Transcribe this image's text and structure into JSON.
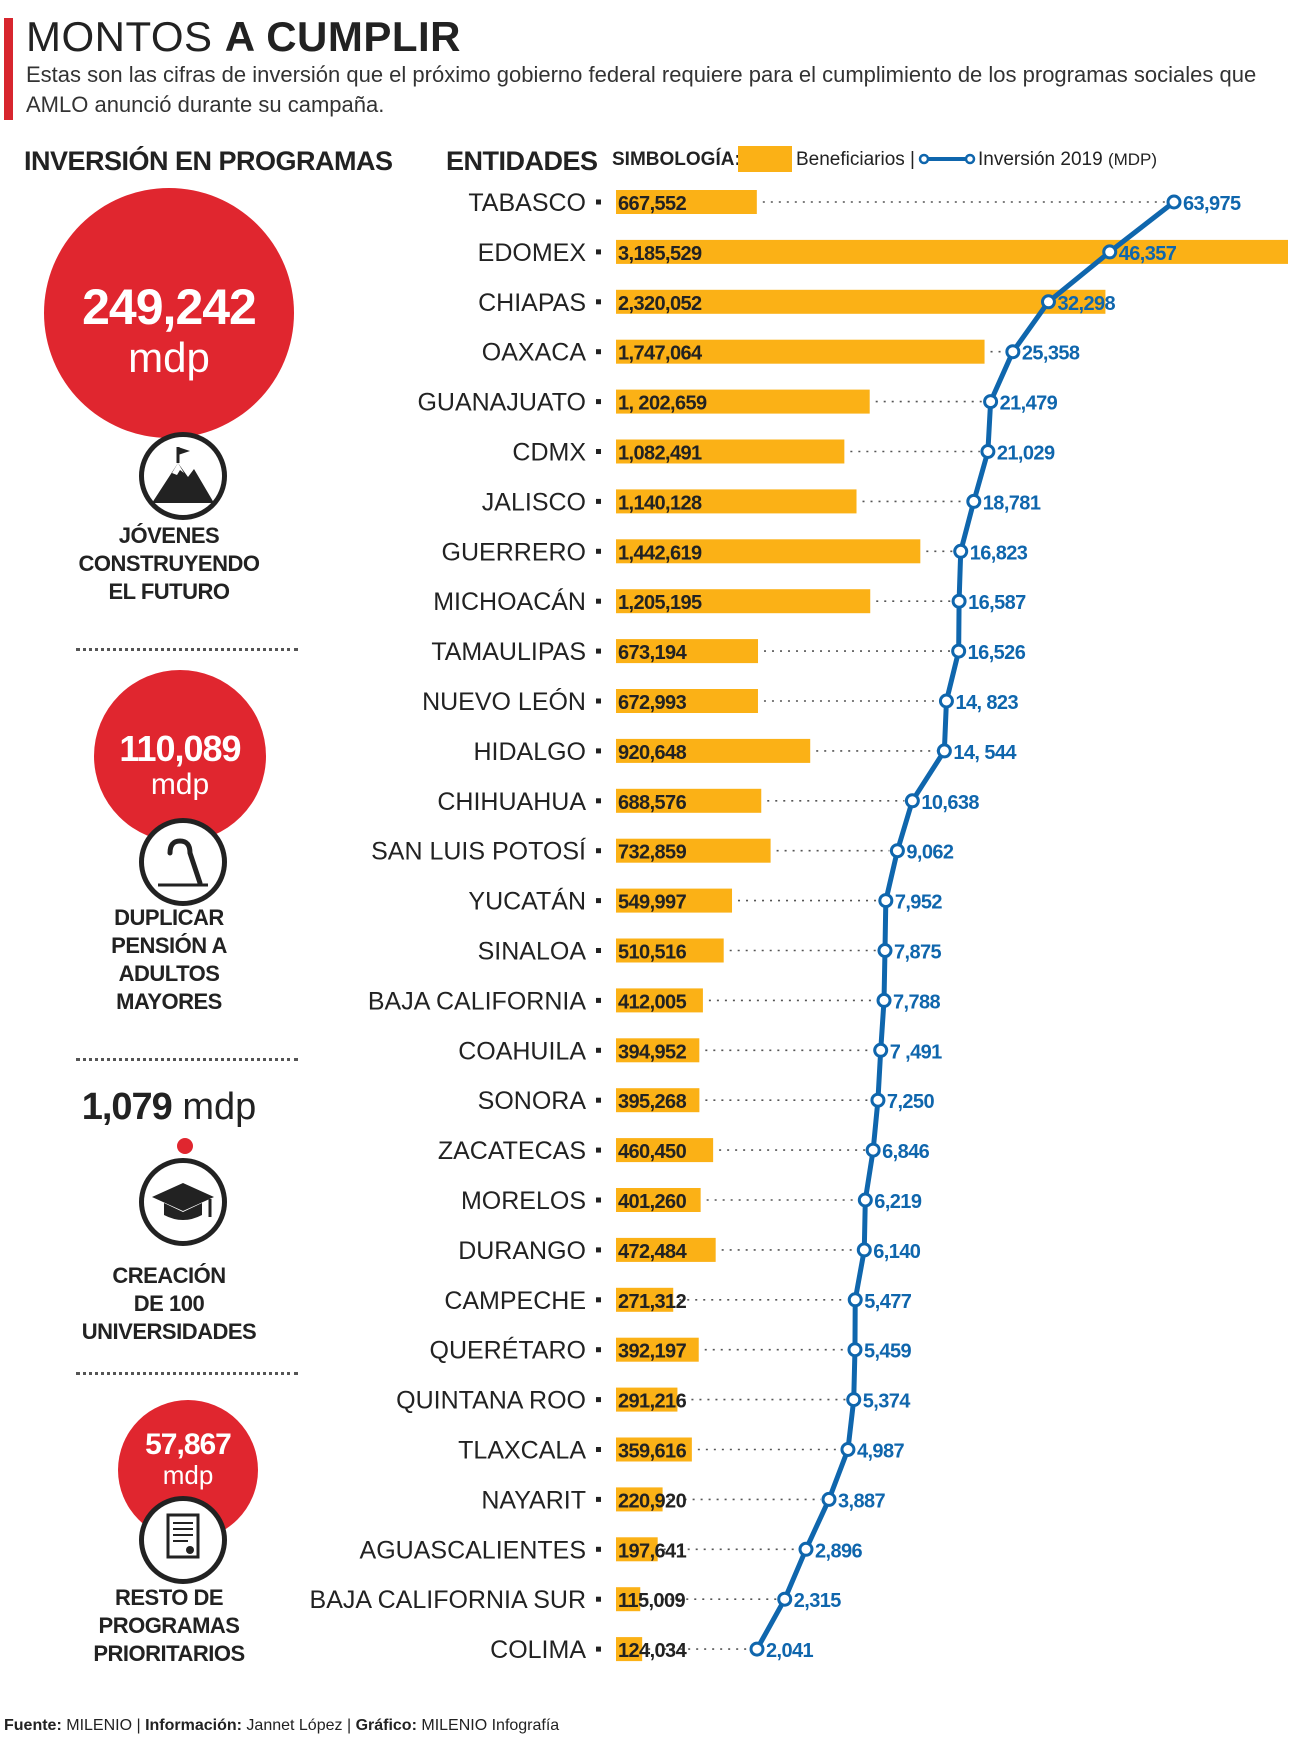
{
  "header": {
    "title_light": "MONTOS",
    "title_bold": "A CUMPLIR",
    "subtitle": "Estas son las cifras de inversión que el próximo gobierno federal requiere para el cumplimiento de los programas sociales que AMLO anunció durante su campaña."
  },
  "left_panel": {
    "heading": "INVERSIÓN EN PROGRAMAS",
    "programs": [
      {
        "value": "249,242",
        "unit": "mdp",
        "label_lines": [
          "JÓVENES",
          "CONSTRUYENDO",
          "EL FUTURO"
        ],
        "icon": "mountain-flag-icon"
      },
      {
        "value": "110,089",
        "unit": "mdp",
        "label_lines": [
          "DUPLICAR",
          "PENSIÓN A",
          "ADULTOS",
          "MAYORES"
        ],
        "icon": "cane-icon"
      },
      {
        "value": "1,079",
        "unit": "mdp",
        "label_lines": [
          "CREACIÓN",
          "DE 100",
          "UNIVERSIDADES"
        ],
        "icon": "graduation-cap-icon"
      },
      {
        "value": "57,867",
        "unit": "mdp",
        "label_lines": [
          "RESTO DE",
          "PROGRAMAS",
          "PRIORITARIOS"
        ],
        "icon": "document-icon"
      }
    ]
  },
  "chart_header": {
    "entities_label": "ENTIDADES",
    "legend_title": "SIMBOLOGÍA:",
    "legend_bars": "Beneficiarios |",
    "legend_line": "Inversión 2019",
    "legend_line_unit": "(MDP)"
  },
  "colors": {
    "bar": "#fbb116",
    "line": "#0f66ad",
    "accent_red": "#e0262f",
    "text": "#222222"
  },
  "chart_data": {
    "type": "bar",
    "categories": [
      "TABASCO",
      "EDOMEX",
      "CHIAPAS",
      "OAXACA",
      "GUANAJUATO",
      "CDMX",
      "JALISCO",
      "GUERRERO",
      "MICHOACÁN",
      "TAMAULIPAS",
      "NUEVO LEÓN",
      "HIDALGO",
      "CHIHUAHUA",
      "SAN LUIS POTOSÍ",
      "YUCATÁN",
      "SINALOA",
      "BAJA CALIFORNIA",
      "COAHUILA",
      "SONORA",
      "ZACATECAS",
      "MORELOS",
      "DURANGO",
      "CAMPECHE",
      "QUERÉTARO",
      "QUINTANA ROO",
      "TLAXCALA",
      "NAYARIT",
      "AGUASCALIENTES",
      "BAJA CALIFORNIA SUR",
      "COLIMA"
    ],
    "series": [
      {
        "name": "Beneficiarios",
        "values": [
          667552,
          3185529,
          2320052,
          1747064,
          1202659,
          1082491,
          1140128,
          1442619,
          1205195,
          673194,
          672993,
          920648,
          688576,
          732859,
          549997,
          510516,
          412005,
          394952,
          395268,
          460450,
          401260,
          472484,
          271312,
          392197,
          291216,
          359616,
          220920,
          197641,
          115009,
          124034
        ],
        "labels": [
          "667,552",
          "3,185,529",
          "2,320,052",
          "1,747,064",
          "1, 202,659",
          "1,082,491",
          "1,140,128",
          "1,442,619",
          "1,205,195",
          "673,194",
          "672,993",
          "920,648",
          "688,576",
          "732,859",
          "549,997",
          "510,516",
          "412,005",
          "394,952",
          "395,268",
          "460,450",
          "401,260",
          "472,484",
          "271,312",
          "392,197",
          "291,216",
          "359,616",
          "220,920",
          "197,641",
          "115,009",
          "124,034"
        ]
      },
      {
        "name": "Inversión 2019",
        "values": [
          63975,
          46357,
          32298,
          25358,
          21479,
          21029,
          18781,
          16823,
          16587,
          16526,
          14823,
          14544,
          10638,
          9062,
          7952,
          7875,
          7788,
          7491,
          7250,
          6846,
          6219,
          6140,
          5477,
          5459,
          5374,
          4987,
          3887,
          2896,
          2315,
          2041
        ],
        "labels": [
          "63,975",
          "46,357",
          "32,298",
          "25,358",
          "21,479",
          "21,029",
          "18,781",
          "16,823",
          "16,587",
          "16,526",
          "14, 823",
          "14, 544",
          "10,638",
          "9,062",
          "7,952",
          "7,875",
          "7,788",
          "7 ,491",
          "7,250",
          "6,846",
          "6,219",
          "6,140",
          "5,477",
          "5,459",
          "5,374",
          "4,987",
          "3,887",
          "2,896",
          "2,315",
          "2,041"
        ]
      }
    ]
  },
  "footer": {
    "source_label": "Fuente:",
    "source": "MILENIO |",
    "info_label": "Información:",
    "info": "Jannet López |",
    "graphic_label": "Gráfico:",
    "graphic": "MILENIO Infografía"
  }
}
